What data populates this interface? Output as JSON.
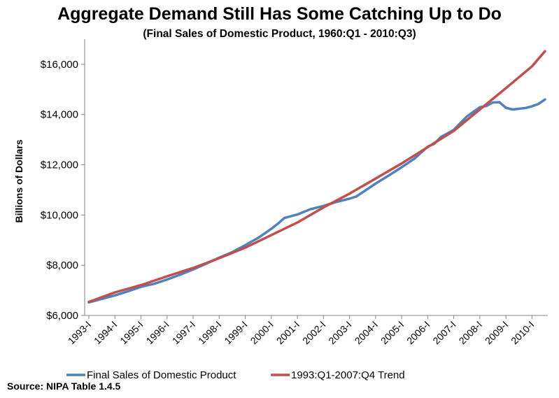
{
  "chart_data": {
    "type": "line",
    "title": "Aggregate Demand Still Has Some Catching Up to Do",
    "subtitle": "(Final Sales of Domestic Product, 1960:Q1 - 2010:Q3)",
    "ylabel": "Billions of Dollars",
    "xlabel": "",
    "ylim": [
      6000,
      17000
    ],
    "y_ticks": [
      {
        "value": 6000,
        "label": "$6,000"
      },
      {
        "value": 8000,
        "label": "$8,000"
      },
      {
        "value": 10000,
        "label": "$10,000"
      },
      {
        "value": 12000,
        "label": "$12,000"
      },
      {
        "value": 14000,
        "label": "$14,000"
      },
      {
        "value": 16000,
        "label": "$16,000"
      }
    ],
    "x_ticks": [
      "1993-I",
      "1994-I",
      "1995-I",
      "1996-I",
      "1997-I",
      "1998-I",
      "1999-I",
      "2000-I",
      "2001-I",
      "2002-I",
      "2003-I",
      "2004-I",
      "2005-I",
      "2006-I",
      "2007-I",
      "2008-I",
      "2009-I",
      "2010-I"
    ],
    "x_range": [
      "1993-I",
      "2010-III"
    ],
    "grid": false,
    "legend_position": "bottom",
    "series": [
      {
        "name": "Final Sales of Domestic Product",
        "color": "#4f81bd",
        "points": [
          [
            "1993-I",
            6520
          ],
          [
            "1993-III",
            6660
          ],
          [
            "1994-I",
            6800
          ],
          [
            "1994-III",
            6960
          ],
          [
            "1995-I",
            7140
          ],
          [
            "1995-III",
            7260
          ],
          [
            "1996-I",
            7430
          ],
          [
            "1996-III",
            7620
          ],
          [
            "1997-I",
            7830
          ],
          [
            "1997-III",
            8060
          ],
          [
            "1998-I",
            8300
          ],
          [
            "1998-III",
            8520
          ],
          [
            "1999-I",
            8800
          ],
          [
            "1999-II",
            8950
          ],
          [
            "1999-III",
            9090
          ],
          [
            "2000-I",
            9450
          ],
          [
            "2000-II",
            9650
          ],
          [
            "2000-III",
            9880
          ],
          [
            "2001-I",
            10020
          ],
          [
            "2001-III",
            10230
          ],
          [
            "2002-I",
            10360
          ],
          [
            "2002-III",
            10520
          ],
          [
            "2003-I",
            10650
          ],
          [
            "2003-II",
            10730
          ],
          [
            "2003-III",
            10900
          ],
          [
            "2004-I",
            11250
          ],
          [
            "2004-III",
            11570
          ],
          [
            "2005-I",
            11900
          ],
          [
            "2005-III",
            12250
          ],
          [
            "2006-I",
            12720
          ],
          [
            "2006-II",
            12830
          ],
          [
            "2006-III",
            13100
          ],
          [
            "2007-I",
            13390
          ],
          [
            "2007-III",
            13920
          ],
          [
            "2008-I",
            14290
          ],
          [
            "2008-II",
            14340
          ],
          [
            "2008-III",
            14480
          ],
          [
            "2008-IV",
            14490
          ],
          [
            "2009-I",
            14270
          ],
          [
            "2009-II",
            14200
          ],
          [
            "2009-III",
            14230
          ],
          [
            "2009-IV",
            14260
          ],
          [
            "2010-I",
            14330
          ],
          [
            "2010-II",
            14420
          ],
          [
            "2010-III",
            14600
          ]
        ]
      },
      {
        "name": "1993:Q1-2007:Q4 Trend",
        "color": "#c0504d",
        "points": [
          [
            "1993-I",
            6540
          ],
          [
            "1994-I",
            6920
          ],
          [
            "1995-I",
            7210
          ],
          [
            "1996-I",
            7560
          ],
          [
            "1997-I",
            7890
          ],
          [
            "1998-I",
            8280
          ],
          [
            "1999-I",
            8700
          ],
          [
            "2000-I",
            9200
          ],
          [
            "2001-I",
            9700
          ],
          [
            "2002-I",
            10300
          ],
          [
            "2003-I",
            10850
          ],
          [
            "2004-I",
            11450
          ],
          [
            "2005-I",
            12050
          ],
          [
            "2006-I",
            12700
          ],
          [
            "2007-I",
            13350
          ],
          [
            "2008-I",
            14200
          ],
          [
            "2009-I",
            15050
          ],
          [
            "2010-I",
            15920
          ],
          [
            "2010-III",
            16520
          ]
        ]
      }
    ]
  },
  "source": "Source: NIPA Table 1.4.5"
}
